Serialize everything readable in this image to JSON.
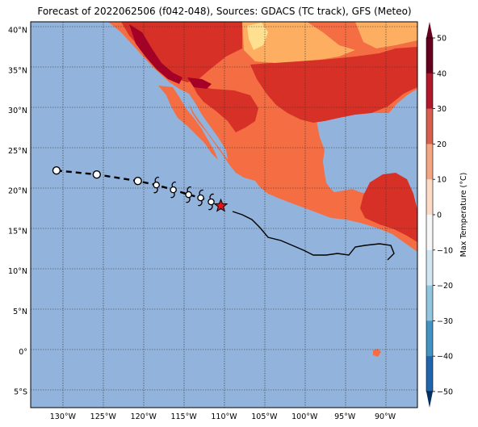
{
  "title": "Forecast of 2022062506 (f042-048), Sources: GDACS (TC track), GFS (Meteo)",
  "map": {
    "lat_labels": [
      "40°N",
      "35°N",
      "30°N",
      "25°N",
      "20°N",
      "15°N",
      "10°N",
      "5°N",
      "0°",
      "5°S"
    ],
    "lon_labels": [
      "130°W",
      "125°W",
      "120°W",
      "115°W",
      "110°W",
      "105°W",
      "100°W",
      "95°W",
      "90°W"
    ],
    "lat_range": [
      -7,
      41
    ],
    "lon_range": [
      -134,
      -86
    ],
    "ocean_color": "#92b4dc",
    "land_colors": {
      "hot": "#d73027",
      "very_hot": "#a50026",
      "warm": "#f46d43",
      "mild": "#fdae61",
      "cool": "#fee090"
    }
  },
  "track": {
    "past_points": [
      {
        "lon": -130.8,
        "lat": 22.5
      },
      {
        "lon": -125.8,
        "lat": 22.0
      },
      {
        "lon": -120.7,
        "lat": 21.2
      }
    ],
    "forecast_points": [
      {
        "lon": -118.4,
        "lat": 20.7
      },
      {
        "lon": -116.3,
        "lat": 20.1
      },
      {
        "lon": -114.4,
        "lat": 19.5
      },
      {
        "lon": -112.9,
        "lat": 19.1
      },
      {
        "lon": -111.6,
        "lat": 18.6
      }
    ],
    "current_position": {
      "lon": -110.4,
      "lat": 18.1
    }
  },
  "colorbar": {
    "label": "Max Temperature (°C)",
    "ticks": [
      "50",
      "40",
      "30",
      "20",
      "10",
      "0",
      "−10",
      "−20",
      "−30",
      "−40",
      "−50"
    ],
    "colors": [
      "#67001f",
      "#b2182b",
      "#d6604d",
      "#f4a582",
      "#fddbc7",
      "#f7f7f7",
      "#d1e5f0",
      "#92c5de",
      "#4393c3",
      "#2166ac",
      "#053061"
    ],
    "range": [
      -50,
      50
    ]
  }
}
